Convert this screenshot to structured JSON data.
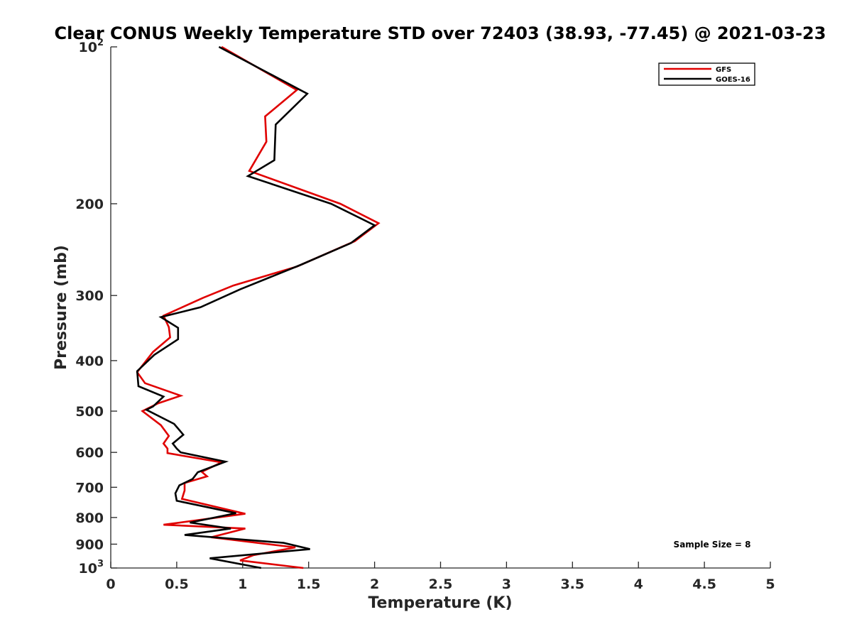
{
  "chart_data": {
    "type": "line",
    "title": "Clear CONUS Weekly Temperature STD over 72403 (38.93, -77.45) @ 2021-03-23",
    "xlabel": "Temperature (K)",
    "ylabel": "Pressure (mb)",
    "xlim": [
      0,
      5
    ],
    "ylim": [
      100,
      1000
    ],
    "y_scale": "log",
    "y_reversed": true,
    "x_ticks": [
      "0",
      "0.5",
      "1",
      "1.5",
      "2",
      "2.5",
      "3",
      "3.5",
      "4",
      "4.5",
      "5"
    ],
    "x_tick_values": [
      0,
      0.5,
      1,
      1.5,
      2,
      2.5,
      3,
      3.5,
      4,
      4.5,
      5
    ],
    "y_ticks": [
      {
        "value": 100,
        "base": "10",
        "exp": "2"
      },
      {
        "value": 200,
        "label": "200"
      },
      {
        "value": 300,
        "label": "300"
      },
      {
        "value": 400,
        "label": "400"
      },
      {
        "value": 500,
        "label": "500"
      },
      {
        "value": 600,
        "label": "600"
      },
      {
        "value": 700,
        "label": "700"
      },
      {
        "value": 800,
        "label": "800"
      },
      {
        "value": 900,
        "label": "900"
      },
      {
        "value": 1000,
        "base": "10",
        "exp": "3"
      }
    ],
    "grid": false,
    "legend_position": "top-right",
    "annotation": "Sample Size = 8",
    "series": [
      {
        "name": "GFS",
        "color": "#e00000",
        "points": [
          [
            0.84,
            100
          ],
          [
            1.41,
            121
          ],
          [
            1.17,
            136
          ],
          [
            1.18,
            152
          ],
          [
            1.05,
            173
          ],
          [
            1.74,
            200
          ],
          [
            2.03,
            218
          ],
          [
            1.85,
            236
          ],
          [
            1.41,
            264
          ],
          [
            0.93,
            287
          ],
          [
            0.7,
            303
          ],
          [
            0.4,
            328
          ],
          [
            0.44,
            345
          ],
          [
            0.45,
            361
          ],
          [
            0.32,
            385
          ],
          [
            0.2,
            421
          ],
          [
            0.26,
            442
          ],
          [
            0.53,
            467
          ],
          [
            0.36,
            483
          ],
          [
            0.24,
            500
          ],
          [
            0.38,
            532
          ],
          [
            0.44,
            558
          ],
          [
            0.4,
            577
          ],
          [
            0.43,
            590
          ],
          [
            0.43,
            602
          ],
          [
            0.84,
            627
          ],
          [
            0.69,
            654
          ],
          [
            0.73,
            667
          ],
          [
            0.56,
            687
          ],
          [
            0.56,
            710
          ],
          [
            0.54,
            737
          ],
          [
            1.02,
            787
          ],
          [
            0.4,
            826
          ],
          [
            1.02,
            840
          ],
          [
            0.76,
            873
          ],
          [
            1.4,
            913
          ],
          [
            1.08,
            945
          ],
          [
            0.98,
            967
          ],
          [
            1.46,
            1000
          ]
        ]
      },
      {
        "name": "GOES-16",
        "color": "#000000",
        "points": [
          [
            0.82,
            100
          ],
          [
            1.49,
            123
          ],
          [
            1.25,
            141
          ],
          [
            1.24,
            165
          ],
          [
            1.04,
            177
          ],
          [
            1.67,
            200
          ],
          [
            2.0,
            220
          ],
          [
            1.82,
            238
          ],
          [
            1.44,
            262
          ],
          [
            0.98,
            292
          ],
          [
            0.68,
            316
          ],
          [
            0.38,
            330
          ],
          [
            0.51,
            346
          ],
          [
            0.51,
            364
          ],
          [
            0.33,
            390
          ],
          [
            0.2,
            419
          ],
          [
            0.21,
            448
          ],
          [
            0.4,
            469
          ],
          [
            0.32,
            490
          ],
          [
            0.27,
            497
          ],
          [
            0.48,
            529
          ],
          [
            0.55,
            555
          ],
          [
            0.47,
            577
          ],
          [
            0.5,
            590
          ],
          [
            0.53,
            600
          ],
          [
            0.87,
            625
          ],
          [
            0.66,
            655
          ],
          [
            0.62,
            675
          ],
          [
            0.52,
            694
          ],
          [
            0.49,
            719
          ],
          [
            0.5,
            743
          ],
          [
            0.95,
            785
          ],
          [
            0.6,
            818
          ],
          [
            0.91,
            840
          ],
          [
            0.56,
            864
          ],
          [
            1.31,
            895
          ],
          [
            1.51,
            920
          ],
          [
            0.75,
            958
          ],
          [
            1.14,
            1000
          ]
        ]
      }
    ]
  }
}
